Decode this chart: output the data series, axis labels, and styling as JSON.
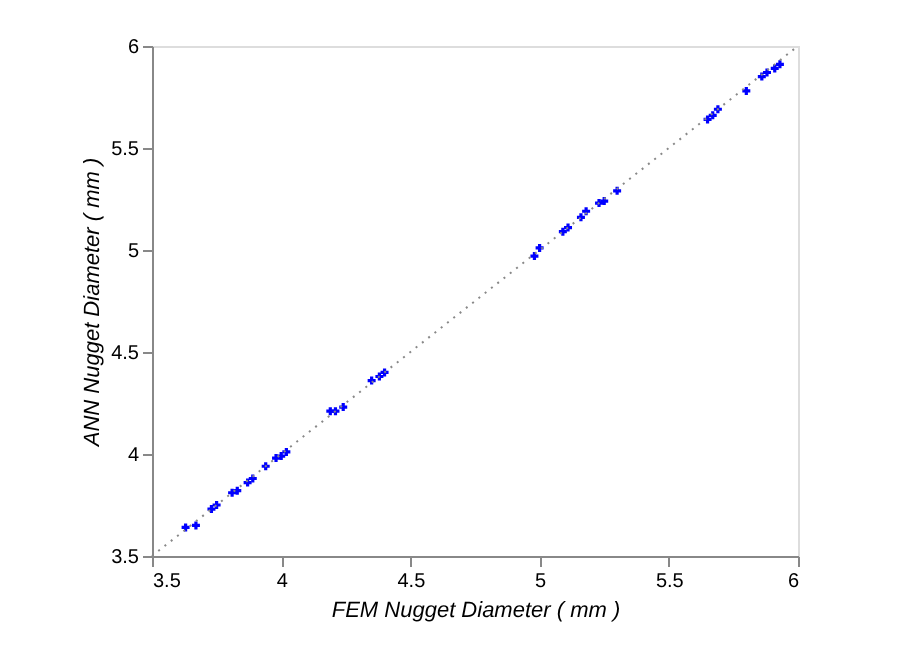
{
  "chart_data": {
    "type": "scatter",
    "xlabel": "FEM Nugget Diameter ( mm )",
    "ylabel": "ANN Nugget Diameter ( mm )",
    "xlim": [
      3.5,
      6
    ],
    "ylim": [
      3.5,
      6
    ],
    "xticks": [
      3.5,
      4,
      4.5,
      5,
      5.5,
      6
    ],
    "yticks": [
      3.5,
      4,
      4.5,
      5,
      5.5,
      6
    ],
    "grid": false,
    "marker": "cross",
    "series": [
      {
        "color": "#0000ff",
        "x": [
          3.63,
          3.67,
          3.73,
          3.75,
          3.81,
          3.83,
          3.87,
          3.89,
          3.94,
          3.98,
          4.0,
          4.02,
          4.19,
          4.21,
          4.24,
          4.35,
          4.38,
          4.4,
          4.98,
          5.0,
          5.09,
          5.11,
          5.16,
          5.18,
          5.23,
          5.25,
          5.3,
          5.65,
          5.67,
          5.69,
          5.8,
          5.86,
          5.88,
          5.91,
          5.93
        ],
        "values": [
          3.64,
          3.65,
          3.73,
          3.75,
          3.81,
          3.82,
          3.86,
          3.88,
          3.94,
          3.98,
          3.99,
          4.01,
          4.21,
          4.21,
          4.23,
          4.36,
          4.38,
          4.4,
          4.97,
          5.01,
          5.09,
          5.11,
          5.16,
          5.19,
          5.23,
          5.24,
          5.29,
          5.64,
          5.66,
          5.69,
          5.78,
          5.85,
          5.87,
          5.89,
          5.91
        ]
      },
      {
        "type": "line",
        "color": "#888888",
        "line_style": "dotted",
        "marker": "none",
        "x": [
          3.5,
          6
        ],
        "values": [
          3.5,
          6
        ]
      }
    ]
  }
}
